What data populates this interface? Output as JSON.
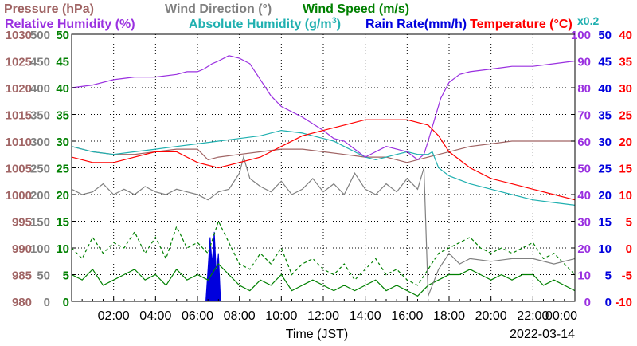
{
  "chart_data": {
    "type": "line",
    "titles": {
      "row1": [
        {
          "text": "Pressure (hPa)",
          "color": "#a06464"
        },
        {
          "text": "Wind Direction (°)",
          "color": "#808080"
        },
        {
          "text": "Wind Speed (m/s)",
          "color": "#008000"
        }
      ],
      "row2": [
        {
          "text": "Relative Humidity (%)",
          "color": "#9a30e0"
        },
        {
          "text": "Absolute Humidity (g/m",
          "sup": "3",
          "close": ")",
          "color": "#20b0b0"
        },
        {
          "text": "Rain Rate(mm/h)",
          "color": "#0000dd"
        },
        {
          "text": "Temperature (°C)",
          "color": "#ff0000"
        }
      ],
      "scale_note": {
        "text": "x0.2",
        "color": "#20b0b0"
      }
    },
    "xlabel": "Time (JST)",
    "date": "2022-03-14",
    "x_ticks": [
      "02:00",
      "04:00",
      "06:00",
      "08:00",
      "10:00",
      "12:00",
      "14:00",
      "16:00",
      "18:00",
      "20:00",
      "22:00",
      "00:00"
    ],
    "xlim": [
      0,
      24
    ],
    "axes": {
      "pressure": {
        "color": "#a06464",
        "ticks": [
          "980",
          "985",
          "990",
          "995",
          "1000",
          "1005",
          "1010",
          "1015",
          "1020",
          "1025",
          "1030"
        ],
        "range": [
          980,
          1030
        ]
      },
      "wind_direction": {
        "color": "#808080",
        "ticks": [
          "0",
          "50",
          "100",
          "150",
          "200",
          "250",
          "300",
          "350",
          "400",
          "450",
          "500"
        ],
        "range": [
          0,
          500
        ]
      },
      "wind_speed": {
        "color": "#008000",
        "ticks": [
          "0",
          "5",
          "10",
          "15",
          "20",
          "25",
          "30",
          "35",
          "40",
          "45",
          "50"
        ],
        "range": [
          0,
          50
        ]
      },
      "relative_humidity": {
        "color": "#9a30e0",
        "ticks": [
          "0",
          "10",
          "20",
          "30",
          "40",
          "50",
          "60",
          "70",
          "80",
          "90",
          "100"
        ],
        "range": [
          0,
          100
        ]
      },
      "rain_rate": {
        "color": "#0000dd",
        "ticks": [
          "0",
          "5",
          "10",
          "15",
          "20",
          "25",
          "30",
          "35",
          "40",
          "45",
          "50"
        ],
        "range": [
          0,
          50
        ]
      },
      "temperature": {
        "color": "#ff0000",
        "ticks": [
          "-10",
          "-5",
          "0",
          "5",
          "10",
          "15",
          "20",
          "25",
          "30",
          "35",
          "40"
        ],
        "range": [
          -10,
          40
        ]
      }
    },
    "grid": true,
    "series": [
      {
        "name": "Relative Humidity",
        "axis": "relative_humidity",
        "color": "#9a30e0",
        "x": [
          0,
          1,
          2,
          3,
          4,
          5,
          5.5,
          6,
          6.3,
          6.7,
          7,
          7.5,
          8,
          8.5,
          9,
          9.5,
          10,
          11,
          12,
          12.5,
          13,
          13.5,
          14,
          14.5,
          15,
          15.5,
          16,
          16.5,
          16.8,
          17,
          17.3,
          17.6,
          18,
          18.5,
          19,
          20,
          21,
          22,
          23,
          24
        ],
        "y": [
          80,
          81,
          83,
          84,
          84,
          85,
          86,
          86,
          87,
          89,
          90,
          92,
          91,
          89,
          83,
          77,
          73,
          69,
          64,
          61,
          60,
          57,
          54,
          56,
          58,
          57,
          56,
          53,
          55,
          60,
          68,
          76,
          82,
          85,
          86,
          87,
          88,
          88,
          89,
          90
        ]
      },
      {
        "name": "Absolute Humidity",
        "axis": "relative_humidity",
        "color": "#20b0b0",
        "x": [
          0,
          1,
          2,
          3,
          4,
          5,
          6,
          7,
          8,
          9,
          10,
          11,
          11.5,
          12,
          12.5,
          13,
          13.5,
          14,
          14.5,
          15,
          15.5,
          16,
          16.5,
          17,
          17.2,
          17.5,
          18,
          19,
          20,
          21,
          22,
          23,
          24
        ],
        "y": [
          58,
          56,
          55,
          56,
          57,
          58,
          59,
          60,
          61,
          62,
          64,
          63,
          62,
          61,
          60,
          58,
          56,
          54,
          53,
          54,
          55,
          56,
          55,
          55,
          56,
          50,
          47,
          44,
          42,
          40,
          38,
          37,
          36
        ]
      },
      {
        "name": "Rain Rate",
        "axis": "rain_rate",
        "color": "#0000dd",
        "fill": true,
        "x": [
          0,
          6.4,
          6.5,
          6.6,
          6.7,
          6.8,
          6.9,
          7.0,
          7.1,
          24
        ],
        "y": [
          0,
          0,
          6,
          12,
          7,
          13,
          5,
          9,
          0,
          0
        ]
      },
      {
        "name": "Temperature",
        "axis": "temperature",
        "color": "#ff0000",
        "x": [
          0,
          1,
          2,
          3,
          4,
          5,
          5.5,
          6,
          7,
          8,
          9,
          10,
          11,
          12,
          13,
          14,
          15,
          16,
          17,
          17.5,
          18,
          19,
          20,
          21,
          22,
          23,
          24
        ],
        "y": [
          17,
          16,
          16,
          17,
          18,
          18,
          17,
          16,
          15,
          16,
          17,
          19,
          21,
          22,
          23,
          24,
          24,
          24,
          23,
          21,
          18,
          15,
          13,
          12,
          11,
          10,
          9
        ]
      },
      {
        "name": "Pressure",
        "axis": "pressure",
        "color": "#a06464",
        "x": [
          0,
          1,
          2,
          3,
          4,
          5,
          6,
          6.5,
          7,
          8,
          9,
          10,
          11,
          12,
          13,
          14,
          15,
          16,
          17,
          18,
          19,
          20,
          21,
          22,
          23,
          24
        ],
        "y": [
          1009,
          1008,
          1007.5,
          1007.5,
          1008,
          1008.5,
          1008.5,
          1006.5,
          1007,
          1007.5,
          1008,
          1008.5,
          1008.5,
          1008,
          1007.5,
          1007,
          1007,
          1006,
          1007,
          1008,
          1009,
          1009.5,
          1010,
          1010,
          1010,
          1010
        ]
      },
      {
        "name": "Wind Direction",
        "axis": "wind_direction",
        "color": "#808080",
        "x": [
          0,
          0.5,
          1,
          1.5,
          2,
          2.5,
          3,
          3.5,
          4,
          4.5,
          5,
          5.5,
          6,
          6.5,
          7,
          7.5,
          8,
          8.2,
          8.5,
          9,
          9.5,
          10,
          10.5,
          11,
          11.5,
          12,
          12.5,
          13,
          13.5,
          14,
          14.5,
          15,
          15.5,
          16,
          16.5,
          16.8,
          17,
          17.5,
          18,
          18.5,
          19,
          20,
          21,
          22,
          23,
          24
        ],
        "y": [
          210,
          200,
          205,
          220,
          200,
          210,
          200,
          215,
          205,
          200,
          210,
          205,
          200,
          190,
          205,
          210,
          240,
          270,
          230,
          215,
          205,
          225,
          200,
          210,
          230,
          205,
          220,
          200,
          240,
          210,
          200,
          220,
          205,
          230,
          210,
          250,
          10,
          60,
          90,
          70,
          80,
          75,
          80,
          80,
          70,
          80
        ]
      },
      {
        "name": "Wind Speed",
        "axis": "wind_speed",
        "color": "#008000",
        "x": [
          0,
          0.5,
          1,
          1.5,
          2,
          2.5,
          3,
          3.5,
          4,
          4.5,
          5,
          5.5,
          6,
          6.5,
          7,
          7.5,
          8,
          8.5,
          9,
          9.5,
          10,
          10.5,
          11,
          11.5,
          12,
          12.5,
          13,
          13.5,
          14,
          14.5,
          15,
          15.5,
          16,
          16.5,
          17,
          17.5,
          18,
          18.5,
          19,
          19.5,
          20,
          20.5,
          21,
          21.5,
          22,
          22.5,
          23,
          23.5,
          24
        ],
        "y": [
          5,
          4,
          6,
          3,
          4,
          5,
          6,
          4,
          5,
          3,
          6,
          4,
          5,
          4,
          7,
          5,
          3,
          2,
          4,
          3,
          5,
          2,
          3,
          4,
          3,
          2,
          3,
          2,
          3,
          4,
          2,
          3,
          2,
          1,
          3,
          4,
          5,
          5,
          6,
          5,
          4,
          5,
          4,
          5,
          5,
          3,
          4,
          3,
          2
        ]
      },
      {
        "name": "Wind Speed (gust)",
        "axis": "wind_speed",
        "color": "#008000",
        "dashed": true,
        "x": [
          0,
          0.5,
          1,
          1.5,
          2,
          2.5,
          3,
          3.5,
          4,
          4.5,
          5,
          5.5,
          6,
          6.5,
          7,
          7.5,
          8,
          8.5,
          9,
          9.5,
          10,
          10.5,
          11,
          11.5,
          12,
          12.5,
          13,
          13.5,
          14,
          14.5,
          15,
          15.5,
          16,
          16.5,
          17,
          17.5,
          18,
          18.5,
          19,
          19.5,
          20,
          20.5,
          21,
          21.5,
          22,
          22.5,
          23,
          23.5,
          24
        ],
        "y": [
          10,
          8,
          12,
          9,
          11,
          10,
          13,
          9,
          12,
          8,
          14,
          10,
          11,
          9,
          15,
          11,
          7,
          6,
          9,
          7,
          10,
          5,
          7,
          8,
          6,
          5,
          7,
          4,
          6,
          8,
          5,
          6,
          4,
          3,
          6,
          9,
          10,
          11,
          12,
          10,
          9,
          10,
          9,
          10,
          11,
          8,
          9,
          7,
          5
        ]
      }
    ]
  }
}
